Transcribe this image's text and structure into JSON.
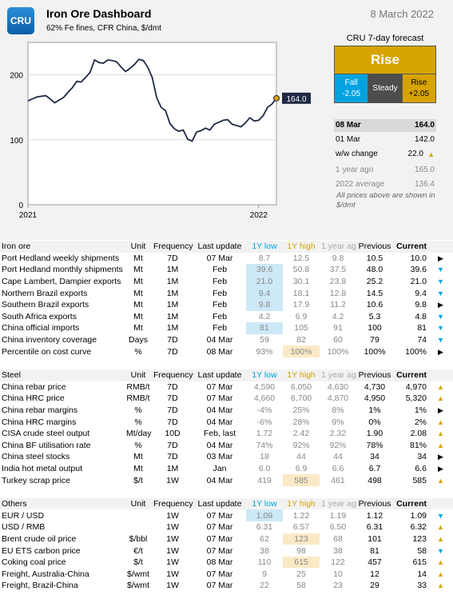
{
  "header": {
    "logo": "CRU",
    "title": "Iron Ore Dashboard",
    "subtitle": "62% Fe fines, CFR China, $/dmt",
    "date": "8 March 2022"
  },
  "chart_data": {
    "type": "line",
    "yticks": [
      "0",
      "100",
      "200"
    ],
    "xticks": [
      "2021",
      "2022"
    ],
    "ylim": [
      0,
      250
    ],
    "last_label": "164.0",
    "points": [
      [
        0,
        160
      ],
      [
        2,
        166
      ],
      [
        4,
        168
      ],
      [
        5,
        163
      ],
      [
        6,
        157
      ],
      [
        8,
        165
      ],
      [
        9,
        173
      ],
      [
        10,
        180
      ],
      [
        11,
        190
      ],
      [
        12,
        189
      ],
      [
        13,
        196
      ],
      [
        14,
        204
      ],
      [
        15,
        223
      ],
      [
        16,
        219
      ],
      [
        17,
        218
      ],
      [
        18,
        223
      ],
      [
        19,
        222
      ],
      [
        20,
        220
      ],
      [
        21,
        212
      ],
      [
        22,
        205
      ],
      [
        23,
        210
      ],
      [
        24,
        216
      ],
      [
        25,
        224
      ],
      [
        26,
        222
      ],
      [
        27,
        212
      ],
      [
        28,
        196
      ],
      [
        29,
        165
      ],
      [
        30,
        150
      ],
      [
        31,
        145
      ],
      [
        32,
        125
      ],
      [
        33,
        117
      ],
      [
        34,
        113
      ],
      [
        35,
        115
      ],
      [
        36,
        101
      ],
      [
        37,
        98
      ],
      [
        38,
        112
      ],
      [
        39,
        114
      ],
      [
        40,
        118
      ],
      [
        41,
        115
      ],
      [
        42,
        124
      ],
      [
        43,
        127
      ],
      [
        44,
        130
      ],
      [
        45,
        131
      ],
      [
        46,
        124
      ],
      [
        47,
        122
      ],
      [
        48,
        120
      ],
      [
        49,
        126
      ],
      [
        50,
        134
      ],
      [
        51,
        129
      ],
      [
        52,
        130
      ],
      [
        53,
        137
      ],
      [
        54,
        150
      ],
      [
        55,
        155
      ],
      [
        56,
        164
      ]
    ],
    "x_2022": 52
  },
  "forecast": {
    "title": "CRU 7-day forecast",
    "main": "Rise",
    "fall_label": "Fall",
    "fall_value": "-2.05",
    "steady_label": "Steady",
    "rise_label": "Rise",
    "rise_value": "+2.05"
  },
  "prices": [
    {
      "label": "08 Mar",
      "value": "164.0",
      "style": "hl"
    },
    {
      "label": "01 Mar",
      "value": "142.0",
      "style": ""
    },
    {
      "label": "w/w change",
      "value": "22.0",
      "style": "chg"
    },
    {
      "label": "1 year ago",
      "value": "165.0",
      "style": "g"
    },
    {
      "label": "2022 average",
      "value": "136.4",
      "style": "g"
    }
  ],
  "prices_note": "All prices above are shown in $/dmt",
  "columns": {
    "unit": "Unit",
    "frequency": "Frequency",
    "last_update": "Last update",
    "low": "1Y low",
    "high": "1Y high",
    "ago": "1 year ago",
    "previous": "Previous",
    "current": "Current"
  },
  "sections": [
    {
      "name": "Iron ore",
      "rows": [
        [
          "Port Hedland weekly shipments",
          "Mt",
          "7D",
          "07 Mar",
          "8.7",
          "12.5",
          "9.8",
          "10.5",
          "10.0",
          "right",
          "",
          ""
        ],
        [
          "Port Hedland monthly shipments",
          "Mt",
          "1M",
          "Feb",
          "39.6",
          "50.8",
          "37.5",
          "48.0",
          "39.6",
          "down",
          "low",
          ""
        ],
        [
          "Cape Lambert, Dampier exports",
          "Mt",
          "1M",
          "Feb",
          "21.0",
          "30.1",
          "23.8",
          "25.2",
          "21.0",
          "down",
          "low",
          ""
        ],
        [
          "Northern Brazil exports",
          "Mt",
          "1M",
          "Feb",
          "9.4",
          "18.1",
          "12.8",
          "14.5",
          "9.4",
          "down",
          "low",
          ""
        ],
        [
          "Southern Brazil exports",
          "Mt",
          "1M",
          "Feb",
          "9.8",
          "17.9",
          "11.2",
          "10.6",
          "9.8",
          "right",
          "low",
          ""
        ],
        [
          "South Africa exports",
          "Mt",
          "1M",
          "Feb",
          "4.2",
          "6.9",
          "4.2",
          "5.3",
          "4.8",
          "down",
          "",
          ""
        ],
        [
          "China official imports",
          "Mt",
          "1M",
          "Feb",
          "81",
          "105",
          "91",
          "100",
          "81",
          "down",
          "low",
          ""
        ],
        [
          "China inventory coverage",
          "Days",
          "7D",
          "04 Mar",
          "59",
          "82",
          "60",
          "79",
          "74",
          "down",
          "",
          ""
        ],
        [
          "Percentile on cost curve",
          "%",
          "7D",
          "08 Mar",
          "93%",
          "100%",
          "100%",
          "100%",
          "100%",
          "right",
          "",
          "high"
        ]
      ]
    },
    {
      "name": "Steel",
      "rows": [
        [
          "China rebar price",
          "RMB/t",
          "7D",
          "07 Mar",
          "4,590",
          "6,050",
          "4,630",
          "4,730",
          "4,970",
          "up",
          "",
          ""
        ],
        [
          "China HRC price",
          "RMB/t",
          "7D",
          "07 Mar",
          "4,660",
          "6,700",
          "4,870",
          "4,950",
          "5,320",
          "up",
          "",
          ""
        ],
        [
          "China rebar margins",
          "%",
          "7D",
          "04 Mar",
          "-4%",
          "25%",
          "8%",
          "1%",
          "1%",
          "right",
          "",
          ""
        ],
        [
          "China HRC margins",
          "%",
          "7D",
          "04 Mar",
          "-6%",
          "28%",
          "9%",
          "0%",
          "2%",
          "up",
          "",
          ""
        ],
        [
          "CISA crude steel output",
          "Mt/day",
          "10D",
          "Feb, last",
          "1.72",
          "2.42",
          "2.32",
          "1.90",
          "2.08",
          "up",
          "",
          ""
        ],
        [
          "China BF utilisation rate",
          "%",
          "7D",
          "04 Mar",
          "74%",
          "92%",
          "92%",
          "78%",
          "81%",
          "up",
          "",
          ""
        ],
        [
          "China steel stocks",
          "Mt",
          "7D",
          "03 Mar",
          "18",
          "44",
          "44",
          "34",
          "34",
          "right",
          "",
          ""
        ],
        [
          "India hot metal output",
          "Mt",
          "1M",
          "Jan",
          "6.0",
          "6.9",
          "6.6",
          "6.7",
          "6.6",
          "right",
          "",
          ""
        ],
        [
          "Turkey scrap price",
          "$/t",
          "1W",
          "04 Mar",
          "419",
          "585",
          "461",
          "498",
          "585",
          "up",
          "",
          "high"
        ]
      ]
    },
    {
      "name": "Others",
      "rows": [
        [
          "EUR / USD",
          "",
          "1W",
          "07 Mar",
          "1.09",
          "1.22",
          "1.19",
          "1.12",
          "1.09",
          "down",
          "low",
          ""
        ],
        [
          "USD / RMB",
          "",
          "1W",
          "07 Mar",
          "6.31",
          "6.57",
          "6.50",
          "6.31",
          "6.32",
          "up",
          "",
          ""
        ],
        [
          "Brent crude oil price",
          "$/bbl",
          "1W",
          "07 Mar",
          "62",
          "123",
          "68",
          "101",
          "123",
          "up",
          "",
          "high"
        ],
        [
          "EU ETS carbon price",
          "€/t",
          "1W",
          "07 Mar",
          "38",
          "98",
          "38",
          "81",
          "58",
          "down",
          "",
          ""
        ],
        [
          "Coking coal price",
          "$/t",
          "1W",
          "08 Mar",
          "110",
          "615",
          "122",
          "457",
          "615",
          "up",
          "",
          "high"
        ],
        [
          "Freight, Australia-China",
          "$/wmt",
          "1W",
          "07 Mar",
          "9",
          "25",
          "10",
          "12",
          "14",
          "up",
          "",
          ""
        ],
        [
          "Freight, Brazil-China",
          "$/wmt",
          "1W",
          "07 Mar",
          "22",
          "58",
          "23",
          "29",
          "33",
          "up",
          "",
          ""
        ]
      ]
    }
  ]
}
